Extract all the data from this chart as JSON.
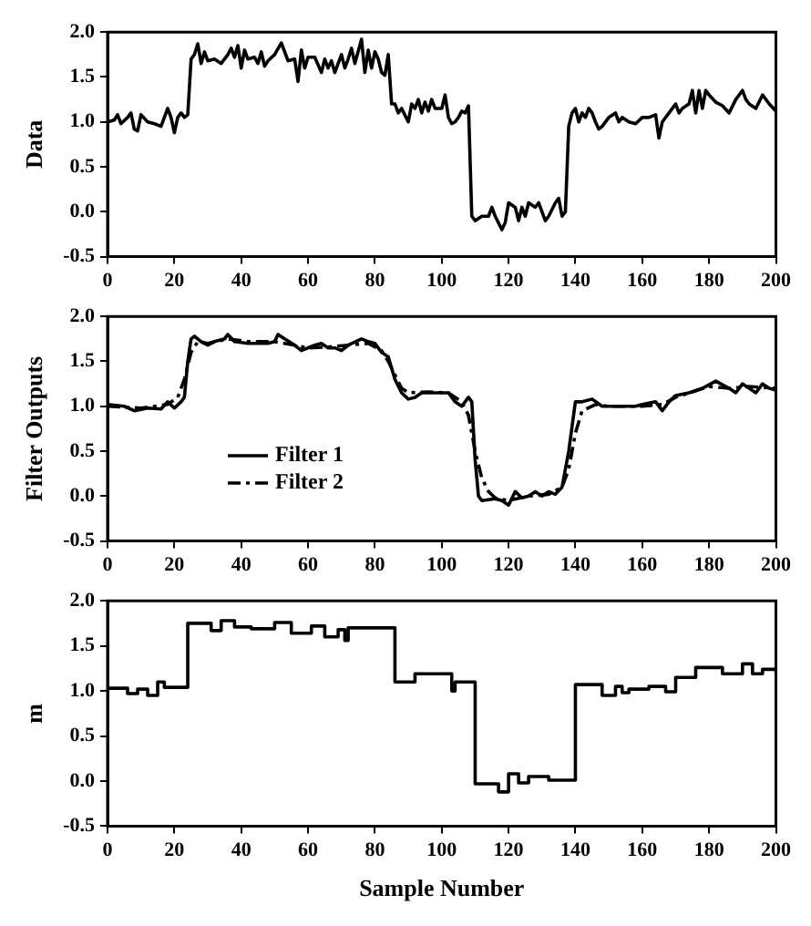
{
  "chart_data": [
    {
      "type": "line",
      "ylabel": "Data",
      "xlim": [
        0,
        200
      ],
      "xticks": [
        0,
        20,
        40,
        60,
        80,
        100,
        120,
        140,
        160,
        180,
        200
      ],
      "ylim": [
        -0.5,
        2.0
      ],
      "yticks": [
        {
          "value": -0.5,
          "label": "-0.5"
        },
        {
          "value": 0,
          "label": "0.0"
        },
        {
          "value": 0.5,
          "label": "0.5"
        },
        {
          "value": 1,
          "label": "1.0"
        },
        {
          "value": 1.5,
          "label": "1.5"
        },
        {
          "value": 2,
          "label": "2.0"
        }
      ],
      "series": [
        {
          "color": "#000000",
          "x": [
            0,
            2,
            3,
            4,
            6,
            7,
            8,
            9,
            10,
            12,
            14,
            16,
            17,
            18,
            19,
            20,
            21,
            22,
            23,
            24,
            25,
            26,
            27,
            28,
            29,
            30,
            32,
            34,
            36,
            37,
            38,
            39,
            40,
            41,
            42,
            44,
            45,
            46,
            47,
            48,
            50,
            52,
            53,
            54,
            56,
            57,
            58,
            59,
            60,
            62,
            64,
            65,
            66,
            67,
            68,
            70,
            71,
            72,
            73,
            74,
            76,
            77,
            78,
            79,
            80,
            81,
            82,
            83,
            84,
            85,
            86,
            87,
            88,
            90,
            91,
            92,
            93,
            94,
            95,
            96,
            97,
            98,
            100,
            101,
            102,
            103,
            104,
            105,
            106,
            107,
            108,
            109,
            110,
            112,
            114,
            115,
            116,
            118,
            119,
            120,
            122,
            123,
            124,
            125,
            126,
            128,
            129,
            130,
            131,
            132,
            134,
            135,
            136,
            137,
            138,
            139,
            140,
            141,
            142,
            143,
            144,
            145,
            146,
            147,
            148,
            150,
            152,
            153,
            154,
            156,
            158,
            160,
            162,
            164,
            165,
            166,
            168,
            170,
            171,
            172,
            174,
            175,
            176,
            177,
            178,
            179,
            180,
            182,
            184,
            186,
            188,
            190,
            191,
            192,
            194,
            196,
            198,
            200
          ],
          "values": [
            1.0,
            1.02,
            1.08,
            0.98,
            1.05,
            1.1,
            0.92,
            0.9,
            1.08,
            1.0,
            0.98,
            0.95,
            1.05,
            1.15,
            1.05,
            0.88,
            1.05,
            1.1,
            1.05,
            1.08,
            1.7,
            1.75,
            1.87,
            1.65,
            1.78,
            1.68,
            1.7,
            1.65,
            1.75,
            1.82,
            1.72,
            1.85,
            1.6,
            1.8,
            1.7,
            1.72,
            1.65,
            1.78,
            1.62,
            1.68,
            1.75,
            1.88,
            1.78,
            1.68,
            1.7,
            1.45,
            1.8,
            1.6,
            1.72,
            1.72,
            1.55,
            1.7,
            1.6,
            1.68,
            1.55,
            1.75,
            1.6,
            1.7,
            1.82,
            1.65,
            1.92,
            1.55,
            1.8,
            1.6,
            1.78,
            1.7,
            1.55,
            1.52,
            1.75,
            1.2,
            1.2,
            1.1,
            1.15,
            1.0,
            1.2,
            1.15,
            1.25,
            1.1,
            1.22,
            1.12,
            1.25,
            1.15,
            1.15,
            1.3,
            1.05,
            0.98,
            1.0,
            1.05,
            1.12,
            1.1,
            1.18,
            -0.05,
            -0.1,
            -0.05,
            -0.05,
            0.05,
            -0.05,
            -0.2,
            -0.12,
            0.1,
            0.05,
            -0.1,
            0.05,
            -0.05,
            0.1,
            0.05,
            0.1,
            0.0,
            -0.1,
            -0.05,
            0.1,
            0.15,
            -0.05,
            0.0,
            0.95,
            1.1,
            1.15,
            1.0,
            1.1,
            1.05,
            1.15,
            1.1,
            1.0,
            0.92,
            0.95,
            1.05,
            1.1,
            1.0,
            1.05,
            1.0,
            0.98,
            1.05,
            1.05,
            1.08,
            0.82,
            1.0,
            1.1,
            1.2,
            1.1,
            1.15,
            1.2,
            1.35,
            1.1,
            1.35,
            1.15,
            1.35,
            1.3,
            1.22,
            1.18,
            1.1,
            1.25,
            1.35,
            1.25,
            1.2,
            1.15,
            1.3,
            1.2,
            1.12
          ]
        }
      ]
    },
    {
      "type": "line",
      "ylabel": "Filter Outputs",
      "legend": "bottom left",
      "xlim": [
        0,
        200
      ],
      "xticks": [
        0,
        20,
        40,
        60,
        80,
        100,
        120,
        140,
        160,
        180,
        200
      ],
      "ylim": [
        -0.5,
        2.0
      ],
      "yticks": [
        {
          "value": -0.5,
          "label": "-0.5"
        },
        {
          "value": 0,
          "label": "0.0"
        },
        {
          "value": 0.5,
          "label": "0.5"
        },
        {
          "value": 1,
          "label": "1.0"
        },
        {
          "value": 1.5,
          "label": "1.5"
        },
        {
          "value": 2,
          "label": "2.0"
        }
      ],
      "series": [
        {
          "name": "Filter 1",
          "color": "#000000",
          "line_style": "solid",
          "x": [
            0,
            5,
            8,
            12,
            16,
            18,
            20,
            22,
            23,
            24,
            25,
            26,
            28,
            30,
            32,
            35,
            36,
            38,
            42,
            48,
            50,
            51,
            53,
            56,
            58,
            62,
            64,
            66,
            68,
            70,
            72,
            76,
            78,
            80,
            82,
            84,
            86,
            88,
            90,
            92,
            94,
            98,
            102,
            104,
            106,
            108,
            109,
            110,
            111,
            112,
            116,
            118,
            120,
            122,
            124,
            126,
            128,
            130,
            132,
            134,
            136,
            138,
            140,
            142,
            145,
            148,
            150,
            154,
            158,
            160,
            164,
            166,
            168,
            170,
            174,
            178,
            182,
            186,
            188,
            190,
            192,
            194,
            196,
            198,
            200
          ],
          "values": [
            1.02,
            1.0,
            0.95,
            0.98,
            0.97,
            1.05,
            0.98,
            1.05,
            1.1,
            1.5,
            1.75,
            1.78,
            1.72,
            1.68,
            1.72,
            1.75,
            1.8,
            1.72,
            1.7,
            1.7,
            1.72,
            1.8,
            1.75,
            1.68,
            1.62,
            1.68,
            1.7,
            1.65,
            1.65,
            1.62,
            1.68,
            1.75,
            1.72,
            1.7,
            1.6,
            1.55,
            1.3,
            1.15,
            1.08,
            1.1,
            1.15,
            1.15,
            1.15,
            1.05,
            1.0,
            1.1,
            1.05,
            0.4,
            0.0,
            -0.05,
            -0.03,
            -0.05,
            -0.1,
            0.05,
            -0.02,
            0.0,
            0.05,
            0.0,
            0.05,
            0.02,
            0.1,
            0.5,
            1.05,
            1.05,
            1.08,
            1.0,
            1.0,
            1.0,
            1.0,
            1.02,
            1.05,
            0.95,
            1.05,
            1.12,
            1.15,
            1.2,
            1.28,
            1.2,
            1.15,
            1.25,
            1.2,
            1.15,
            1.25,
            1.2,
            1.18
          ]
        },
        {
          "name": "Filter 2",
          "color": "#000000",
          "line_style": "dashed",
          "x": [
            0,
            10,
            18,
            21,
            23,
            25,
            27,
            30,
            36,
            42,
            50,
            56,
            60,
            66,
            72,
            78,
            82,
            84,
            86,
            88,
            90,
            96,
            102,
            106,
            108,
            110,
            112,
            114,
            116,
            120,
            126,
            132,
            136,
            138,
            140,
            142,
            146,
            150,
            160,
            166,
            170,
            180,
            186,
            192,
            200
          ],
          "values": [
            1.0,
            0.98,
            1.02,
            1.1,
            1.3,
            1.6,
            1.72,
            1.7,
            1.75,
            1.72,
            1.72,
            1.68,
            1.65,
            1.66,
            1.68,
            1.7,
            1.62,
            1.5,
            1.35,
            1.2,
            1.15,
            1.16,
            1.15,
            1.05,
            0.9,
            0.5,
            0.2,
            0.05,
            -0.02,
            -0.05,
            0.0,
            0.02,
            0.1,
            0.3,
            0.7,
            0.95,
            1.02,
            1.0,
            1.0,
            1.02,
            1.1,
            1.22,
            1.2,
            1.22,
            1.2
          ]
        }
      ]
    },
    {
      "type": "step",
      "ylabel": "m",
      "xlabel": "Sample Number",
      "xlim": [
        0,
        200
      ],
      "xticks": [
        0,
        20,
        40,
        60,
        80,
        100,
        120,
        140,
        160,
        180,
        200
      ],
      "ylim": [
        -0.5,
        2.0
      ],
      "yticks": [
        {
          "value": -0.5,
          "label": "-0.5"
        },
        {
          "value": 0,
          "label": "0.0"
        },
        {
          "value": 0.5,
          "label": "0.5"
        },
        {
          "value": 1,
          "label": "1.0"
        },
        {
          "value": 1.5,
          "label": "1.5"
        },
        {
          "value": 2,
          "label": "2.0"
        }
      ],
      "series": [
        {
          "color": "#000000",
          "x": [
            0,
            6,
            9,
            12,
            15,
            17,
            24,
            31,
            34,
            38,
            43,
            50,
            55,
            61,
            65,
            69,
            71,
            72,
            86,
            92,
            103,
            104,
            110,
            117,
            120,
            123,
            126,
            132,
            140,
            148,
            152,
            154,
            156,
            162,
            167,
            170,
            176,
            184,
            190,
            193,
            196,
            200
          ],
          "values": [
            1.03,
            0.97,
            1.02,
            0.95,
            1.1,
            1.04,
            1.75,
            1.67,
            1.78,
            1.71,
            1.69,
            1.76,
            1.64,
            1.72,
            1.6,
            1.68,
            1.56,
            1.7,
            1.1,
            1.19,
            1.0,
            1.1,
            -0.03,
            -0.12,
            0.08,
            -0.02,
            0.05,
            0.01,
            1.07,
            0.95,
            1.05,
            0.98,
            1.02,
            1.05,
            0.99,
            1.15,
            1.26,
            1.19,
            1.3,
            1.19,
            1.24,
            1.2
          ]
        }
      ]
    }
  ]
}
